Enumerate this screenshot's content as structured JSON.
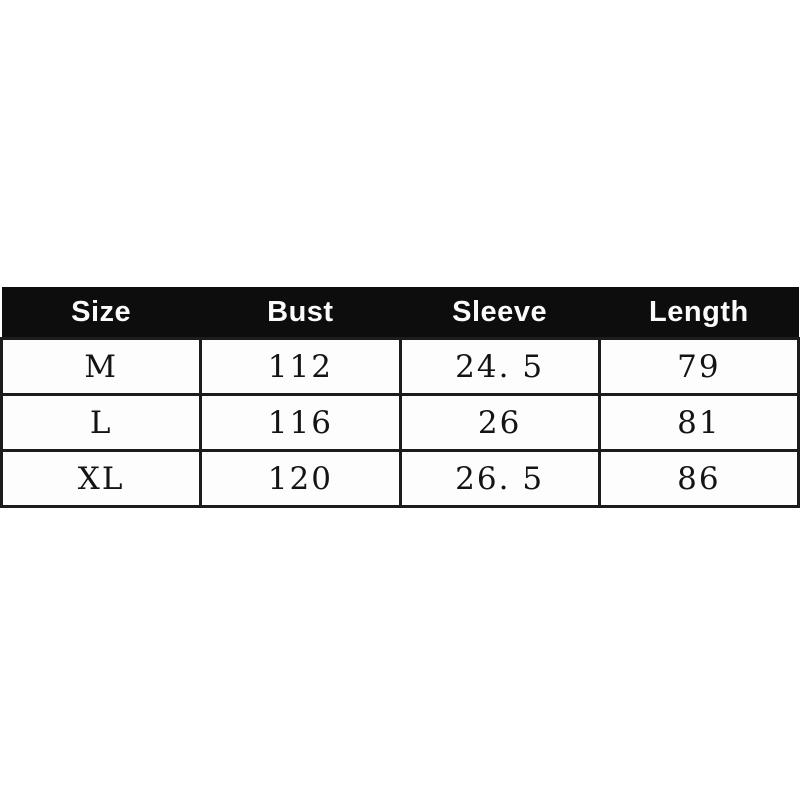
{
  "page": {
    "background_color": "#ffffff",
    "border_color": "#1c1c1c",
    "header_bg_color": "#0d0d0d",
    "header_text_color": "#fbfbfb",
    "cell_bg_color": "#fdfdfd"
  },
  "table": {
    "columns": [
      "Size",
      "Bust",
      "Sleeve",
      "Length"
    ],
    "rows": [
      [
        "M",
        "112",
        "24. 5",
        "79"
      ],
      [
        "L",
        "116",
        "26",
        "81"
      ],
      [
        "XL",
        "120",
        "26. 5",
        "86"
      ]
    ]
  },
  "chart_data": {
    "type": "table",
    "title": "",
    "columns": [
      "Size",
      "Bust",
      "Sleeve",
      "Length"
    ],
    "rows": [
      {
        "size": "M",
        "bust": 112,
        "sleeve": 24.5,
        "length": 79
      },
      {
        "size": "L",
        "bust": 116,
        "sleeve": 26,
        "length": 81
      },
      {
        "size": "XL",
        "bust": 120,
        "sleeve": 26.5,
        "length": 86
      }
    ]
  }
}
